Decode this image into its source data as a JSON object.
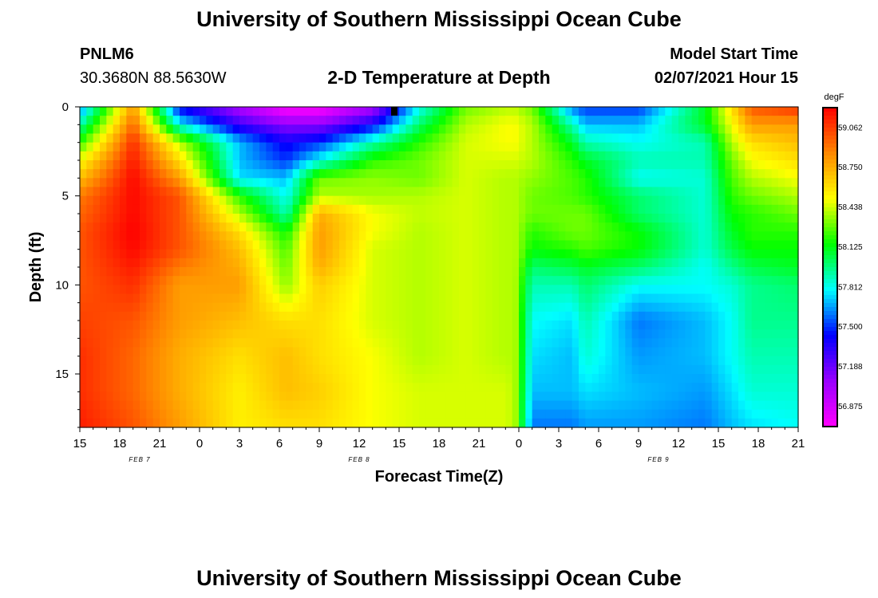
{
  "page": {
    "title_top": "University of Southern Mississippi Ocean Cube",
    "title_bottom": "University of Southern Mississippi Ocean Cube",
    "station_id": "PNLM6",
    "station_coords": "30.3680N 88.5630W",
    "plot_title": "2-D Temperature at Depth",
    "model_start_label": "Model Start Time",
    "model_start_value": "02/07/2021 Hour 15"
  },
  "chart_data": {
    "type": "heatmap",
    "title": "2-D Temperature at Depth",
    "xlabel": "Forecast Time(Z)",
    "ylabel": "Depth (ft)",
    "units": "degF",
    "x_hours_range": [
      0,
      54
    ],
    "y_range": [
      0,
      18
    ],
    "y_reversed": true,
    "x_tick_labels": [
      "15",
      "18",
      "21",
      "0",
      "3",
      "6",
      "9",
      "12",
      "15",
      "18",
      "21",
      "0",
      "3",
      "6",
      "9",
      "12",
      "15",
      "18",
      "21"
    ],
    "y_tick_labels": [
      "0",
      "5",
      "10",
      "15"
    ],
    "y_tick_values": [
      0,
      5,
      10,
      15
    ],
    "date_labels": [
      {
        "text": "FEB 7",
        "hour": 4.5
      },
      {
        "text": "FEB 8",
        "hour": 21
      },
      {
        "text": "FEB 9",
        "hour": 43.5
      }
    ],
    "colorbar": {
      "unit_label": "degF",
      "range": [
        56.72,
        59.22
      ],
      "tick_labels": [
        "59.062",
        "58.750",
        "58.438",
        "58.125",
        "57.812",
        "57.500",
        "57.188",
        "56.875"
      ],
      "tick_values": [
        59.062,
        58.75,
        58.438,
        58.125,
        57.812,
        57.5,
        57.188,
        56.875
      ],
      "colors": [
        "#ff00ff",
        "#9900ff",
        "#0000ff",
        "#00ffff",
        "#00ff00",
        "#ffff00",
        "#ff8800",
        "#ff0000"
      ]
    },
    "grid_hours": [
      0,
      4,
      7.5,
      12,
      15.5,
      18,
      22,
      25.5,
      29,
      32,
      32.7,
      34,
      37,
      38,
      42,
      47,
      49,
      50.5,
      54
    ],
    "grid_depths": [
      0,
      1,
      2,
      3,
      4,
      5,
      6,
      7,
      8,
      9,
      10,
      12,
      14,
      16,
      18
    ],
    "temperatures": [
      [
        57.6,
        58.8,
        57.4,
        57.0,
        56.7,
        56.7,
        57.0,
        57.8,
        58.3,
        58.4,
        58.4,
        58.3,
        57.6,
        57.5,
        57.5,
        58.1,
        58.6,
        59.0,
        59.1
      ],
      [
        57.9,
        58.95,
        57.8,
        57.3,
        57.1,
        57.1,
        57.4,
        58.0,
        58.4,
        58.5,
        58.5,
        58.4,
        57.9,
        57.7,
        57.7,
        58.1,
        58.5,
        58.8,
        58.8
      ],
      [
        58.2,
        59.1,
        58.4,
        57.7,
        57.4,
        57.5,
        57.9,
        58.2,
        58.45,
        58.5,
        58.5,
        58.4,
        58.1,
        57.9,
        57.8,
        57.9,
        58.4,
        58.6,
        58.7
      ],
      [
        58.5,
        59.15,
        58.6,
        57.7,
        57.5,
        57.8,
        58.2,
        58.3,
        58.45,
        58.45,
        58.45,
        58.4,
        58.2,
        58.1,
        57.9,
        57.9,
        58.3,
        58.5,
        58.6
      ],
      [
        58.7,
        59.2,
        58.8,
        57.75,
        57.7,
        58.3,
        58.35,
        58.3,
        58.45,
        58.4,
        58.4,
        58.35,
        58.25,
        58.2,
        57.8,
        57.85,
        58.25,
        58.4,
        58.5
      ],
      [
        58.9,
        59.2,
        59.0,
        58.2,
        57.8,
        58.4,
        58.38,
        58.4,
        58.45,
        58.4,
        58.4,
        58.3,
        58.25,
        58.2,
        58.0,
        57.85,
        58.2,
        58.3,
        58.4
      ],
      [
        58.95,
        59.2,
        59.0,
        58.4,
        57.9,
        58.75,
        58.5,
        58.42,
        58.45,
        58.4,
        58.4,
        58.3,
        58.3,
        58.3,
        58.0,
        57.85,
        58.15,
        58.2,
        58.3
      ],
      [
        59.0,
        59.22,
        59.0,
        58.6,
        58.15,
        58.8,
        58.5,
        58.4,
        58.45,
        58.4,
        58.4,
        58.2,
        58.3,
        58.3,
        58.15,
        57.85,
        58.1,
        58.2,
        58.2
      ],
      [
        59.0,
        59.2,
        59.0,
        58.7,
        58.25,
        58.8,
        58.45,
        58.4,
        58.45,
        58.4,
        58.4,
        58.15,
        58.2,
        58.25,
        58.15,
        57.85,
        58.05,
        58.15,
        58.15
      ],
      [
        59.0,
        59.15,
        58.9,
        58.75,
        58.3,
        58.75,
        58.45,
        58.4,
        58.45,
        58.4,
        58.4,
        58.0,
        58.05,
        58.1,
        58.0,
        57.8,
        57.95,
        58.05,
        58.1
      ],
      [
        59.0,
        59.1,
        58.8,
        58.8,
        58.35,
        58.65,
        58.45,
        58.4,
        58.45,
        58.4,
        58.4,
        57.9,
        57.9,
        58.0,
        57.8,
        57.8,
        57.85,
        57.95,
        58.0
      ],
      [
        59.05,
        59.0,
        58.8,
        58.7,
        58.6,
        58.6,
        58.45,
        58.4,
        58.45,
        58.4,
        58.4,
        57.8,
        57.75,
        57.9,
        57.6,
        57.7,
        57.8,
        57.95,
        57.95
      ],
      [
        59.1,
        58.95,
        58.75,
        58.6,
        58.7,
        58.6,
        58.5,
        58.4,
        58.45,
        58.4,
        58.4,
        57.75,
        57.7,
        57.85,
        57.65,
        57.7,
        57.8,
        57.9,
        57.9
      ],
      [
        59.1,
        58.95,
        58.75,
        58.55,
        58.7,
        58.65,
        58.5,
        58.45,
        58.45,
        58.45,
        58.4,
        57.7,
        57.7,
        57.75,
        57.7,
        57.65,
        57.75,
        57.85,
        57.85
      ],
      [
        59.15,
        59.0,
        58.8,
        58.55,
        58.6,
        58.6,
        58.5,
        58.45,
        58.45,
        58.45,
        58.4,
        57.6,
        57.6,
        57.65,
        57.65,
        57.6,
        57.7,
        57.75,
        57.8
      ]
    ]
  }
}
